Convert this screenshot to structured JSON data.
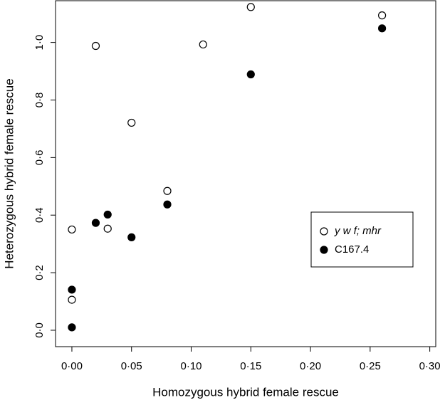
{
  "chart_data": {
    "type": "scatter",
    "xlabel": "Homozygous hybrid female rescue",
    "ylabel": "Heterozygous hybrid female rescue",
    "xlim": [
      -0.0137,
      0.305
    ],
    "ylim": [
      -0.057,
      1.145
    ],
    "xticks": [
      {
        "value": 0,
        "label": "0·00"
      },
      {
        "value": 0.05,
        "label": "0·05"
      },
      {
        "value": 0.1,
        "label": "0·10"
      },
      {
        "value": 0.15,
        "label": "0·15"
      },
      {
        "value": 0.2,
        "label": "0·20"
      },
      {
        "value": 0.25,
        "label": "0·25"
      },
      {
        "value": 0.3,
        "label": "0·30"
      }
    ],
    "yticks": [
      {
        "value": 0,
        "label": "0·0"
      },
      {
        "value": 0.2,
        "label": "0·2"
      },
      {
        "value": 0.4,
        "label": "0·4"
      },
      {
        "value": 0.6,
        "label": "0·6"
      },
      {
        "value": 0.8,
        "label": "0·8"
      },
      {
        "value": 1,
        "label": "1·0"
      }
    ],
    "legend": "right",
    "series": [
      {
        "name": "y w f; mhr",
        "color": "#ffffff",
        "x": [
          0,
          0,
          0.02,
          0.03,
          0.05,
          0.08,
          0.11,
          0.15,
          0.26
        ],
        "values": [
          0.35,
          0.106,
          0.988,
          0.353,
          0.721,
          0.484,
          0.993,
          1.123,
          1.094
        ]
      },
      {
        "name": "C167.4",
        "color": "#000000",
        "x": [
          0,
          0,
          0.02,
          0.03,
          0.05,
          0.08,
          0.15,
          0.26
        ],
        "values": [
          0.141,
          0.01,
          0.373,
          0.402,
          0.323,
          0.437,
          0.889,
          1.049
        ]
      }
    ]
  }
}
